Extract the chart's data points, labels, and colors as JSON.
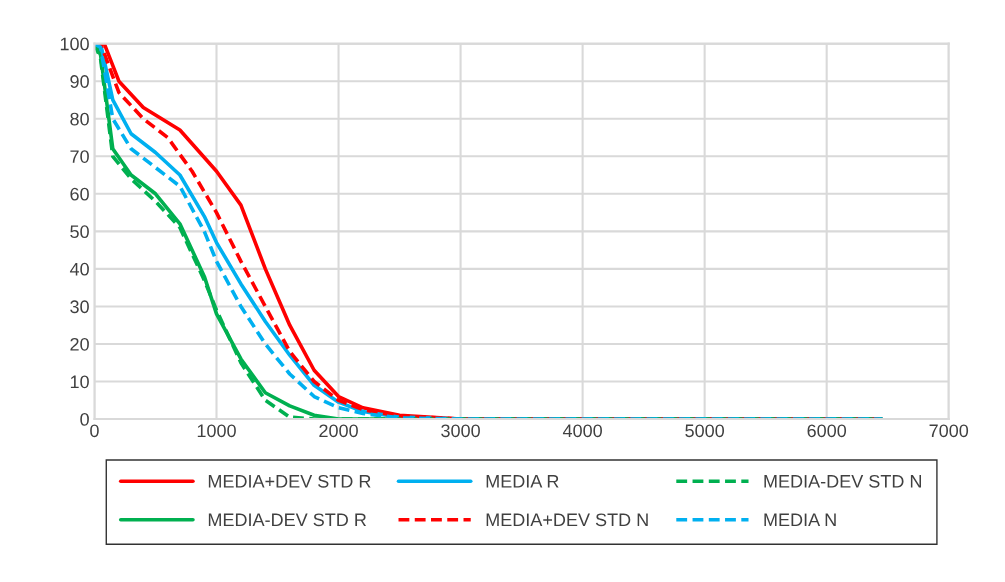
{
  "chart_data": {
    "type": "line",
    "xlim": [
      0,
      7000
    ],
    "xticks": [
      0,
      1000,
      2000,
      3000,
      4000,
      5000,
      6000,
      7000
    ],
    "ylim": [
      0,
      100
    ],
    "yticks": [
      0,
      10,
      20,
      30,
      40,
      50,
      60,
      70,
      80,
      90,
      100
    ],
    "grid": true,
    "legend": "bottom",
    "marker": "none",
    "series": [
      {
        "name": "MEDIA+DEV STD R",
        "color": "#ff0000",
        "line_style": "solid",
        "x": [
          0,
          80,
          200,
          400,
          700,
          1000,
          1200,
          1400,
          1600,
          1800,
          2000,
          2200,
          2500,
          3000,
          6450
        ],
        "values": [
          100,
          100,
          90,
          83,
          77,
          66,
          57,
          40,
          25,
          13,
          6,
          3,
          1,
          0,
          0
        ]
      },
      {
        "name": "MEDIA-DEV STD R",
        "color": "#00b050",
        "line_style": "solid",
        "x": [
          0,
          50,
          150,
          300,
          500,
          700,
          900,
          1000,
          1200,
          1400,
          1600,
          1800,
          2000,
          6450
        ],
        "values": [
          100,
          97,
          72,
          65,
          60,
          52,
          38,
          28,
          16,
          7,
          3.5,
          1,
          0,
          0
        ]
      },
      {
        "name": "MEDIA R",
        "color": "#00b0f0",
        "line_style": "solid",
        "x": [
          0,
          50,
          150,
          300,
          500,
          700,
          900,
          1000,
          1200,
          1400,
          1600,
          1800,
          2000,
          2200,
          2500,
          3000,
          6450
        ],
        "values": [
          100,
          100,
          85,
          76,
          71,
          65,
          54,
          47,
          36,
          26,
          17,
          9,
          4.5,
          2,
          0.5,
          0,
          0
        ]
      },
      {
        "name": "MEDIA+DEV STD N",
        "color": "#ff0000",
        "line_style": "dashed",
        "x": [
          0,
          50,
          200,
          400,
          600,
          800,
          1000,
          1200,
          1400,
          1600,
          1800,
          2000,
          2200,
          2500,
          3000,
          6450
        ],
        "values": [
          100,
          100,
          87,
          80,
          75,
          66,
          55,
          42,
          30,
          18,
          10,
          5,
          2.5,
          0.8,
          0,
          0
        ]
      },
      {
        "name": "MEDIA-DEV STD N",
        "color": "#00b050",
        "line_style": "dashed",
        "x": [
          0,
          50,
          150,
          300,
          500,
          700,
          900,
          1000,
          1200,
          1400,
          1600,
          1800,
          6450
        ],
        "values": [
          100,
          96,
          70,
          64,
          58,
          51,
          37,
          29,
          15,
          5,
          0.5,
          0,
          0
        ]
      },
      {
        "name": "MEDIA N",
        "color": "#00b0f0",
        "line_style": "dashed",
        "x": [
          0,
          50,
          150,
          300,
          500,
          700,
          900,
          1000,
          1200,
          1400,
          1600,
          1800,
          2000,
          2200,
          2500,
          3000,
          6450
        ],
        "values": [
          100,
          99,
          80,
          72,
          67,
          62,
          50,
          42,
          30,
          20,
          12,
          6,
          3,
          1.5,
          0.3,
          0,
          0
        ]
      }
    ]
  }
}
